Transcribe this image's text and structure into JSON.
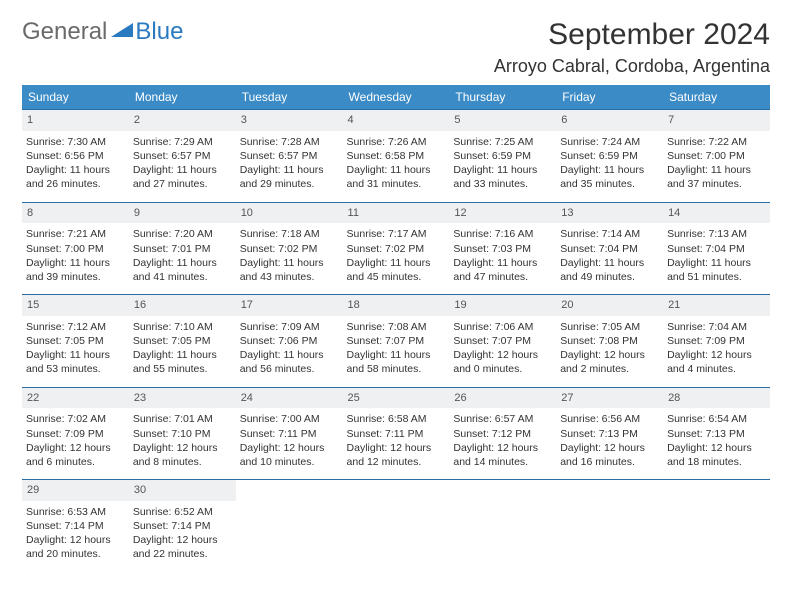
{
  "logo": {
    "text1": "General",
    "text2": "Blue"
  },
  "title": "September 2024",
  "location": "Arroyo Cabral, Cordoba, Argentina",
  "colors": {
    "header_bg": "#3b8bc7",
    "header_text": "#ffffff",
    "row_border": "#2a6ea8",
    "daynum_bg": "#eef0f1",
    "logo_gray": "#6a6a6a",
    "logo_blue": "#2a7ac0"
  },
  "weekdays": [
    "Sunday",
    "Monday",
    "Tuesday",
    "Wednesday",
    "Thursday",
    "Friday",
    "Saturday"
  ],
  "weeks": [
    [
      {
        "n": "1",
        "sr": "7:30 AM",
        "ss": "6:56 PM",
        "dl": "11 hours and 26 minutes."
      },
      {
        "n": "2",
        "sr": "7:29 AM",
        "ss": "6:57 PM",
        "dl": "11 hours and 27 minutes."
      },
      {
        "n": "3",
        "sr": "7:28 AM",
        "ss": "6:57 PM",
        "dl": "11 hours and 29 minutes."
      },
      {
        "n": "4",
        "sr": "7:26 AM",
        "ss": "6:58 PM",
        "dl": "11 hours and 31 minutes."
      },
      {
        "n": "5",
        "sr": "7:25 AM",
        "ss": "6:59 PM",
        "dl": "11 hours and 33 minutes."
      },
      {
        "n": "6",
        "sr": "7:24 AM",
        "ss": "6:59 PM",
        "dl": "11 hours and 35 minutes."
      },
      {
        "n": "7",
        "sr": "7:22 AM",
        "ss": "7:00 PM",
        "dl": "11 hours and 37 minutes."
      }
    ],
    [
      {
        "n": "8",
        "sr": "7:21 AM",
        "ss": "7:00 PM",
        "dl": "11 hours and 39 minutes."
      },
      {
        "n": "9",
        "sr": "7:20 AM",
        "ss": "7:01 PM",
        "dl": "11 hours and 41 minutes."
      },
      {
        "n": "10",
        "sr": "7:18 AM",
        "ss": "7:02 PM",
        "dl": "11 hours and 43 minutes."
      },
      {
        "n": "11",
        "sr": "7:17 AM",
        "ss": "7:02 PM",
        "dl": "11 hours and 45 minutes."
      },
      {
        "n": "12",
        "sr": "7:16 AM",
        "ss": "7:03 PM",
        "dl": "11 hours and 47 minutes."
      },
      {
        "n": "13",
        "sr": "7:14 AM",
        "ss": "7:04 PM",
        "dl": "11 hours and 49 minutes."
      },
      {
        "n": "14",
        "sr": "7:13 AM",
        "ss": "7:04 PM",
        "dl": "11 hours and 51 minutes."
      }
    ],
    [
      {
        "n": "15",
        "sr": "7:12 AM",
        "ss": "7:05 PM",
        "dl": "11 hours and 53 minutes."
      },
      {
        "n": "16",
        "sr": "7:10 AM",
        "ss": "7:05 PM",
        "dl": "11 hours and 55 minutes."
      },
      {
        "n": "17",
        "sr": "7:09 AM",
        "ss": "7:06 PM",
        "dl": "11 hours and 56 minutes."
      },
      {
        "n": "18",
        "sr": "7:08 AM",
        "ss": "7:07 PM",
        "dl": "11 hours and 58 minutes."
      },
      {
        "n": "19",
        "sr": "7:06 AM",
        "ss": "7:07 PM",
        "dl": "12 hours and 0 minutes."
      },
      {
        "n": "20",
        "sr": "7:05 AM",
        "ss": "7:08 PM",
        "dl": "12 hours and 2 minutes."
      },
      {
        "n": "21",
        "sr": "7:04 AM",
        "ss": "7:09 PM",
        "dl": "12 hours and 4 minutes."
      }
    ],
    [
      {
        "n": "22",
        "sr": "7:02 AM",
        "ss": "7:09 PM",
        "dl": "12 hours and 6 minutes."
      },
      {
        "n": "23",
        "sr": "7:01 AM",
        "ss": "7:10 PM",
        "dl": "12 hours and 8 minutes."
      },
      {
        "n": "24",
        "sr": "7:00 AM",
        "ss": "7:11 PM",
        "dl": "12 hours and 10 minutes."
      },
      {
        "n": "25",
        "sr": "6:58 AM",
        "ss": "7:11 PM",
        "dl": "12 hours and 12 minutes."
      },
      {
        "n": "26",
        "sr": "6:57 AM",
        "ss": "7:12 PM",
        "dl": "12 hours and 14 minutes."
      },
      {
        "n": "27",
        "sr": "6:56 AM",
        "ss": "7:13 PM",
        "dl": "12 hours and 16 minutes."
      },
      {
        "n": "28",
        "sr": "6:54 AM",
        "ss": "7:13 PM",
        "dl": "12 hours and 18 minutes."
      }
    ],
    [
      {
        "n": "29",
        "sr": "6:53 AM",
        "ss": "7:14 PM",
        "dl": "12 hours and 20 minutes."
      },
      {
        "n": "30",
        "sr": "6:52 AM",
        "ss": "7:14 PM",
        "dl": "12 hours and 22 minutes."
      },
      null,
      null,
      null,
      null,
      null
    ]
  ],
  "labels": {
    "sunrise": "Sunrise: ",
    "sunset": "Sunset: ",
    "daylight": "Daylight: "
  }
}
